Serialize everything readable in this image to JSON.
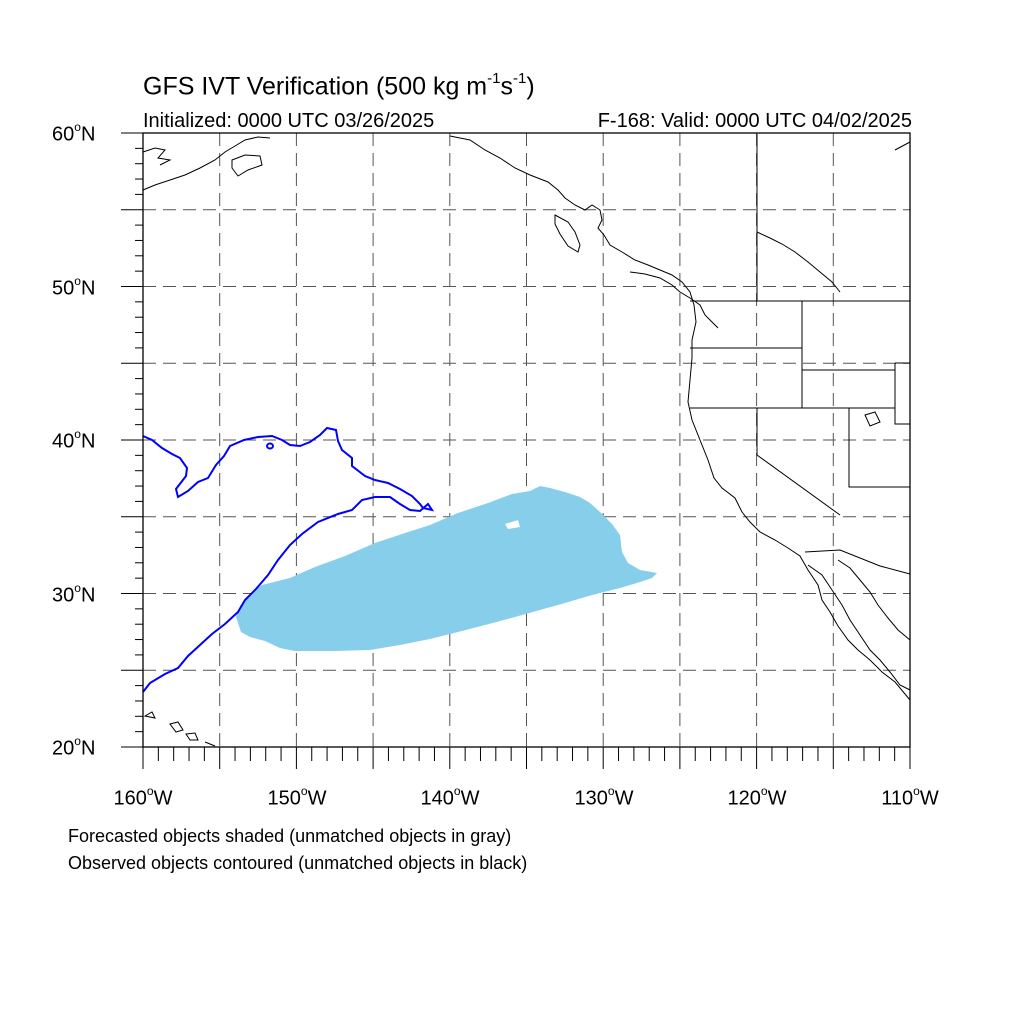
{
  "title": {
    "main_prefix": "GFS IVT Verification (500 kg m",
    "exp1": "-1",
    "mid": "s",
    "exp2": "-1",
    "suffix": ")"
  },
  "subtitle_left": "Initialized: 0000 UTC 03/26/2025",
  "subtitle_right": "F-168: Valid: 0000 UTC 04/02/2025",
  "map": {
    "projection": "cylindrical equidistant",
    "lon_range": [
      -160,
      -110
    ],
    "lat_range": [
      20,
      60
    ],
    "grid_lines": "dashed every 5 degrees",
    "colors": {
      "forecast_fill": "#87ceeb",
      "observed_contour": "#0000ff",
      "coastlines": "#000000",
      "grid": "#555555"
    }
  },
  "lat_labels": [
    {
      "deg": "60",
      "hemi": "N"
    },
    {
      "deg": "50",
      "hemi": "N"
    },
    {
      "deg": "40",
      "hemi": "N"
    },
    {
      "deg": "30",
      "hemi": "N"
    },
    {
      "deg": "20",
      "hemi": "N"
    }
  ],
  "lon_labels": [
    {
      "deg": "160",
      "hemi": "W"
    },
    {
      "deg": "150",
      "hemi": "W"
    },
    {
      "deg": "140",
      "hemi": "W"
    },
    {
      "deg": "130",
      "hemi": "W"
    },
    {
      "deg": "120",
      "hemi": "W"
    },
    {
      "deg": "110",
      "hemi": "W"
    }
  ],
  "degree_symbol": "o",
  "notes": [
    "Forecasted objects shaded (unmatched objects in gray)",
    "Observed objects contoured (unmatched objects in black)"
  ]
}
